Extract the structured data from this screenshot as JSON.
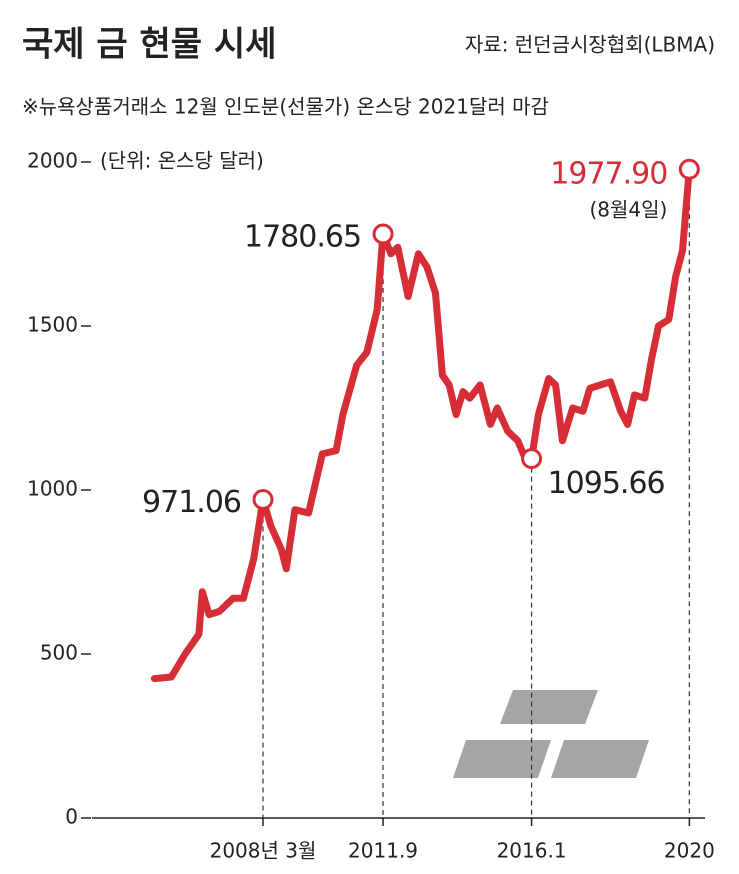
{
  "chart_data": {
    "type": "line",
    "title": "국제 금 현물 시세",
    "source": "자료: 런던금시장협회(LBMA)",
    "subtitle": "※뉴욕상품거래소 12월 인도분(선물가) 온스당 2021달러 마감",
    "unit": "(단위: 온스당 달러)",
    "end_note": "(8월4일)",
    "ylim": [
      0,
      2000
    ],
    "yticks": [
      0,
      500,
      1000,
      1500,
      2000
    ],
    "xlim": [
      2004.0,
      2021.0
    ],
    "xticks": [
      {
        "value": 2008.17,
        "label": "2008년 3월"
      },
      {
        "value": 2011.67,
        "label": "2011.9"
      },
      {
        "value": 2016.0,
        "label": "2016.1"
      },
      {
        "value": 2020.6,
        "label": "2020"
      }
    ],
    "x": [
      2005.0,
      2005.5,
      2005.9,
      2006.3,
      2006.4,
      2006.6,
      2006.9,
      2007.3,
      2007.6,
      2007.9,
      2008.17,
      2008.4,
      2008.7,
      2008.85,
      2009.1,
      2009.5,
      2009.9,
      2010.3,
      2010.5,
      2010.9,
      2011.2,
      2011.5,
      2011.67,
      2011.9,
      2012.1,
      2012.4,
      2012.7,
      2012.95,
      2013.2,
      2013.4,
      2013.6,
      2013.8,
      2014.0,
      2014.2,
      2014.5,
      2014.8,
      2015.0,
      2015.3,
      2015.6,
      2015.8,
      2016.0,
      2016.2,
      2016.5,
      2016.7,
      2016.9,
      2017.2,
      2017.5,
      2017.7,
      2018.0,
      2018.3,
      2018.6,
      2018.8,
      2019.0,
      2019.3,
      2019.5,
      2019.7,
      2020.0,
      2020.2,
      2020.4,
      2020.6
    ],
    "series": [
      {
        "name": "금 현물",
        "color": "#d72d36",
        "values": [
          425,
          430,
          500,
          560,
          690,
          620,
          630,
          670,
          670,
          790,
          971.06,
          890,
          820,
          760,
          940,
          930,
          1110,
          1120,
          1230,
          1380,
          1420,
          1550,
          1780.65,
          1720,
          1740,
          1590,
          1720,
          1680,
          1600,
          1350,
          1320,
          1230,
          1300,
          1280,
          1320,
          1200,
          1250,
          1180,
          1150,
          1100,
          1095.66,
          1230,
          1340,
          1320,
          1150,
          1250,
          1240,
          1310,
          1320,
          1330,
          1240,
          1200,
          1290,
          1280,
          1400,
          1500,
          1520,
          1650,
          1730,
          1977.9
        ],
        "value_labels": [
          null,
          null,
          null,
          null,
          null,
          null,
          null,
          null,
          null,
          null,
          "971.06",
          null,
          null,
          null,
          null,
          null,
          null,
          null,
          null,
          null,
          null,
          null,
          "1780.65",
          null,
          null,
          null,
          null,
          null,
          null,
          null,
          null,
          null,
          null,
          null,
          null,
          null,
          null,
          null,
          null,
          null,
          "1095.66",
          null,
          null,
          null,
          null,
          null,
          null,
          null,
          null,
          null,
          null,
          null,
          null,
          null,
          null,
          null,
          null,
          null,
          null,
          "1977.90"
        ]
      }
    ]
  }
}
